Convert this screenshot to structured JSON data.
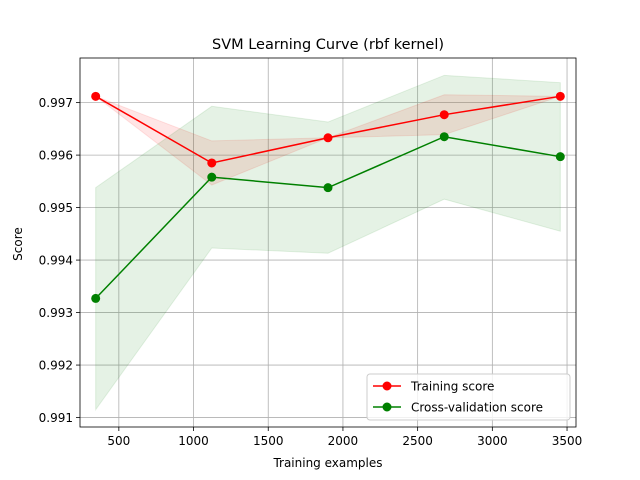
{
  "chart_data": {
    "type": "line",
    "title": "SVM Learning Curve (rbf kernel)",
    "xlabel": "Training examples",
    "ylabel": "Score",
    "xlim": [
      240,
      3560
    ],
    "ylim": [
      0.99082,
      0.99785
    ],
    "xticks": [
      500,
      1000,
      1500,
      2000,
      2500,
      3000,
      3500
    ],
    "yticks": [
      0.991,
      0.992,
      0.993,
      0.994,
      0.995,
      0.996,
      0.997
    ],
    "xtick_labels": [
      "500",
      "1000",
      "1500",
      "2000",
      "2500",
      "3000",
      "3500"
    ],
    "ytick_labels": [
      "0.991",
      "0.992",
      "0.993",
      "0.994",
      "0.995",
      "0.996",
      "0.997"
    ],
    "grid": true,
    "legend_position": "lower-right",
    "x": [
      345,
      1122,
      1900,
      2678,
      3455
    ],
    "series": [
      {
        "name": "Training score",
        "color": "#ff0000",
        "marker": "circle",
        "values": [
          0.99712,
          0.99585,
          0.99633,
          0.99677,
          0.99712
        ],
        "band_upper": [
          0.99712,
          0.99627,
          0.99633,
          0.99715,
          0.99712
        ],
        "band_lower": [
          0.99712,
          0.99543,
          0.99633,
          0.99639,
          0.99712
        ]
      },
      {
        "name": "Cross-validation score",
        "color": "#008000",
        "marker": "circle",
        "values": [
          0.99327,
          0.99558,
          0.99538,
          0.99635,
          0.99597
        ],
        "band_upper": [
          0.99538,
          0.99693,
          0.99663,
          0.99752,
          0.99738
        ],
        "band_lower": [
          0.99115,
          0.99423,
          0.99413,
          0.99516,
          0.99455
        ]
      }
    ]
  }
}
